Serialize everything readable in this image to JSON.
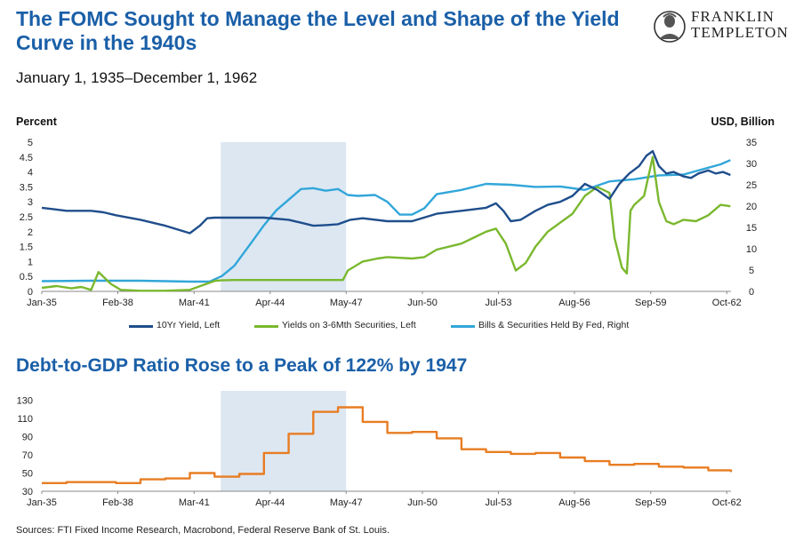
{
  "header": {
    "title": "The FOMC Sought to Manage the Level and Shape of the Yield Curve in the 1940s",
    "subtitle": "January 1, 1935–December 1, 1962",
    "logo_line1": "FRANKLIN",
    "logo_line2": "TEMPLETON"
  },
  "chart2_title": "Debt-to-GDP Ratio Rose to a Peak of 122% by 1947",
  "source": "Sources: FTI Fixed Income Research, Macrobond, Federal Reserve Bank of St. Louis.",
  "colors": {
    "title": "#1a5fa8",
    "ten_year": "#1f4e8c",
    "short": "#7ab82e",
    "holdings": "#32a6d9",
    "debt": "#e87d22",
    "shade": "#dce7f2"
  },
  "chart_data": [
    {
      "type": "line",
      "left_axis_title": "Percent",
      "right_axis_title": "USD, Billion",
      "x_tick_labels": [
        "Jan-35",
        "Feb-38",
        "Mar-41",
        "Apr-44",
        "May-47",
        "Jun-50",
        "Jul-53",
        "Aug-56",
        "Sep-59",
        "Oct-62"
      ],
      "x_ticks": [
        1935.0,
        1938.08,
        1941.17,
        1944.25,
        1947.33,
        1950.42,
        1953.5,
        1956.58,
        1959.67,
        1962.75
      ],
      "xlim": [
        1935.0,
        1962.92
      ],
      "ylim_left": [
        0,
        5
      ],
      "y_ticks_left": [
        "0",
        "0.5",
        "1",
        "1.5",
        "2",
        "2.5",
        "3",
        "3.5",
        "4",
        "4.5",
        "5"
      ],
      "ylim_right": [
        0,
        35
      ],
      "y_ticks_right": [
        "0",
        "5",
        "10",
        "15",
        "20",
        "25",
        "30",
        "35"
      ],
      "shaded_period": [
        1942.25,
        1947.33
      ],
      "legend_position": "bottom",
      "series": [
        {
          "name": "10Yr Yield, Left",
          "axis": "left",
          "x": [
            1935.0,
            1935.5,
            1936.0,
            1937.0,
            1937.5,
            1938.0,
            1939.0,
            1940.0,
            1941.0,
            1941.4,
            1941.7,
            1942.0,
            1943.0,
            1944.0,
            1945.0,
            1945.5,
            1946.0,
            1946.5,
            1947.0,
            1947.5,
            1948.0,
            1949.0,
            1950.0,
            1951.0,
            1952.0,
            1953.0,
            1953.4,
            1953.7,
            1954.0,
            1954.4,
            1955.0,
            1955.5,
            1956.0,
            1956.5,
            1957.0,
            1957.5,
            1958.0,
            1958.4,
            1958.8,
            1959.2,
            1959.5,
            1959.75,
            1960.0,
            1960.3,
            1960.6,
            1961.0,
            1961.3,
            1961.6,
            1962.0,
            1962.3,
            1962.6,
            1962.9
          ],
          "y": [
            2.8,
            2.75,
            2.7,
            2.7,
            2.65,
            2.55,
            2.4,
            2.2,
            1.95,
            2.2,
            2.45,
            2.47,
            2.47,
            2.47,
            2.4,
            2.3,
            2.2,
            2.22,
            2.25,
            2.4,
            2.45,
            2.35,
            2.35,
            2.6,
            2.7,
            2.8,
            2.95,
            2.7,
            2.35,
            2.4,
            2.7,
            2.9,
            3.0,
            3.2,
            3.6,
            3.4,
            3.1,
            3.6,
            3.95,
            4.2,
            4.55,
            4.7,
            4.2,
            3.95,
            4.0,
            3.85,
            3.8,
            3.95,
            4.05,
            3.95,
            4.0,
            3.9
          ]
        },
        {
          "name": "Yields on 3-6Mth Securities, Left",
          "axis": "left",
          "x": [
            1935.0,
            1935.6,
            1936.2,
            1936.6,
            1937.0,
            1937.3,
            1937.8,
            1938.2,
            1939.0,
            1940.0,
            1941.0,
            1941.5,
            1942.0,
            1942.25,
            1942.8,
            1944.0,
            1946.0,
            1947.2,
            1947.4,
            1948.0,
            1948.6,
            1949.0,
            1950.0,
            1950.5,
            1951.0,
            1952.0,
            1952.5,
            1953.0,
            1953.4,
            1953.8,
            1954.2,
            1954.6,
            1955.0,
            1955.5,
            1956.0,
            1956.5,
            1957.0,
            1957.5,
            1958.0,
            1958.2,
            1958.5,
            1958.7,
            1958.85,
            1959.0,
            1959.4,
            1959.75,
            1960.0,
            1960.3,
            1960.6,
            1961.0,
            1961.5,
            1962.0,
            1962.5,
            1962.9
          ],
          "y": [
            0.12,
            0.18,
            0.1,
            0.15,
            0.05,
            0.65,
            0.25,
            0.05,
            0.02,
            0.02,
            0.05,
            0.2,
            0.35,
            0.37,
            0.38,
            0.38,
            0.38,
            0.38,
            0.7,
            1.0,
            1.1,
            1.15,
            1.1,
            1.15,
            1.4,
            1.6,
            1.8,
            2.0,
            2.1,
            1.6,
            0.7,
            0.95,
            1.5,
            2.0,
            2.3,
            2.6,
            3.2,
            3.5,
            3.3,
            1.8,
            0.8,
            0.6,
            2.7,
            2.9,
            3.2,
            4.5,
            3.0,
            2.35,
            2.25,
            2.4,
            2.35,
            2.55,
            2.9,
            2.85
          ]
        },
        {
          "name": "Bills & Securities Held By Fed, Right",
          "axis": "right",
          "x": [
            1935.0,
            1937.0,
            1939.0,
            1941.0,
            1941.8,
            1942.3,
            1942.8,
            1943.5,
            1944.0,
            1944.5,
            1945.0,
            1945.5,
            1946.0,
            1946.5,
            1947.0,
            1947.4,
            1947.8,
            1948.5,
            1949.0,
            1949.5,
            1950.0,
            1950.5,
            1951.0,
            1952.0,
            1953.0,
            1954.0,
            1955.0,
            1956.0,
            1957.0,
            1958.0,
            1959.0,
            1960.0,
            1961.0,
            1961.5,
            1962.0,
            1962.5,
            1962.9
          ],
          "y": [
            2.4,
            2.5,
            2.5,
            2.3,
            2.3,
            3.6,
            6.0,
            11.5,
            15.5,
            19.0,
            21.5,
            24.0,
            24.2,
            23.6,
            24.0,
            22.6,
            22.4,
            22.6,
            21.0,
            18.0,
            18.0,
            19.5,
            22.8,
            23.8,
            25.2,
            25.0,
            24.5,
            24.6,
            23.8,
            25.8,
            26.3,
            27.2,
            27.4,
            28.2,
            29.0,
            29.8,
            30.8
          ]
        }
      ]
    },
    {
      "type": "line",
      "x_tick_labels": [
        "Jan-35",
        "Feb-38",
        "Mar-41",
        "Apr-44",
        "May-47",
        "Jun-50",
        "Jul-53",
        "Aug-56",
        "Sep-59",
        "Oct-62"
      ],
      "x_ticks": [
        1935.0,
        1938.08,
        1941.17,
        1944.25,
        1947.33,
        1950.42,
        1953.5,
        1956.58,
        1959.67,
        1962.75
      ],
      "xlim": [
        1935.0,
        1962.92
      ],
      "ylim": [
        30,
        140
      ],
      "y_ticks": [
        "30",
        "50",
        "70",
        "90",
        "110",
        "130"
      ],
      "shaded_period": [
        1942.25,
        1947.33
      ],
      "series": [
        {
          "x": [
            1935.0,
            1935.5,
            1936.0,
            1937.0,
            1938.0,
            1938.5,
            1939.0,
            1940.0,
            1941.0,
            1942.0,
            1943.0,
            1944.0,
            1945.0,
            1946.0,
            1947.0,
            1948.0,
            1949.0,
            1950.0,
            1951.0,
            1952.0,
            1953.0,
            1954.0,
            1955.0,
            1956.0,
            1957.0,
            1958.0,
            1959.0,
            1960.0,
            1961.0,
            1962.0,
            1962.92
          ],
          "y": [
            39,
            39,
            40,
            40,
            39,
            39,
            43,
            44,
            50,
            46,
            49,
            72,
            93,
            117,
            122,
            106,
            94,
            95,
            88,
            76,
            73,
            71,
            72,
            67,
            63,
            59,
            60,
            57,
            56,
            53,
            51
          ]
        }
      ]
    }
  ]
}
